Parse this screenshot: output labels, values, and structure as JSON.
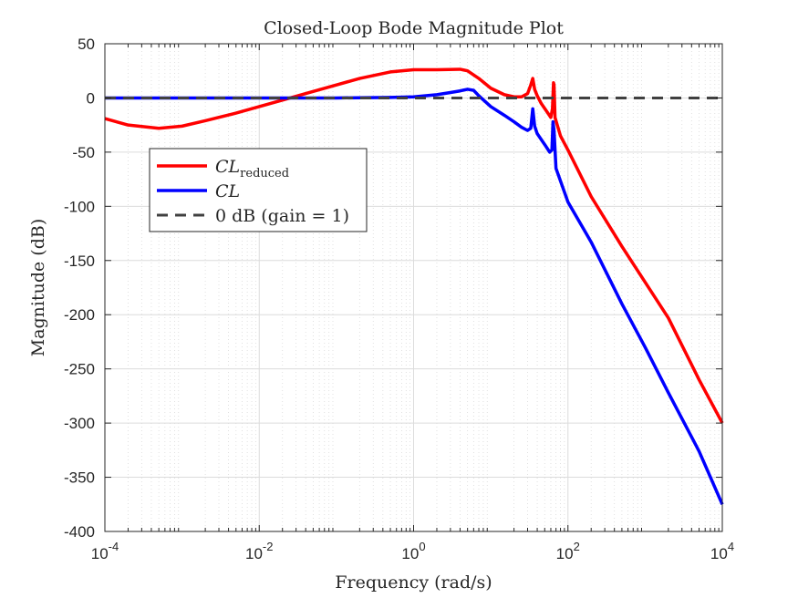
{
  "chart_data": {
    "type": "line",
    "title": "Closed-Loop Bode Magnitude Plot",
    "xlabel": "Frequency (rad/s)",
    "ylabel": "Magnitude (dB)",
    "xscale": "log",
    "xlim": [
      0.0001,
      10000
    ],
    "ylim": [
      -400,
      50
    ],
    "grid": true,
    "minor_grid": true,
    "legend_location": "left-middle",
    "x_ticks": [
      {
        "value": 0.0001,
        "base": "10",
        "exp": "-4"
      },
      {
        "value": 0.01,
        "base": "10",
        "exp": "-2"
      },
      {
        "value": 1,
        "base": "10",
        "exp": "0"
      },
      {
        "value": 100,
        "base": "10",
        "exp": "2"
      },
      {
        "value": 10000,
        "base": "10",
        "exp": "4"
      }
    ],
    "y_ticks": [
      50,
      0,
      -50,
      -100,
      -150,
      -200,
      -250,
      -300,
      -350,
      -400
    ],
    "series": [
      {
        "name": "CL_reduced",
        "legend_main": "CL",
        "legend_sub": "reduced",
        "color": "#ff0000",
        "dash": "solid",
        "points": [
          [
            0.0001,
            -19
          ],
          [
            0.0002,
            -25
          ],
          [
            0.0005,
            -28
          ],
          [
            0.001,
            -26
          ],
          [
            0.002,
            -21
          ],
          [
            0.005,
            -14
          ],
          [
            0.01,
            -8
          ],
          [
            0.02,
            -2
          ],
          [
            0.05,
            6
          ],
          [
            0.1,
            12
          ],
          [
            0.2,
            18
          ],
          [
            0.5,
            24
          ],
          [
            1,
            26
          ],
          [
            2,
            26
          ],
          [
            4,
            26.5
          ],
          [
            5,
            25
          ],
          [
            7,
            18
          ],
          [
            10,
            9
          ],
          [
            15,
            3
          ],
          [
            20,
            1
          ],
          [
            25,
            1
          ],
          [
            30,
            4
          ],
          [
            33,
            12
          ],
          [
            35,
            18
          ],
          [
            37,
            8
          ],
          [
            40,
            2
          ],
          [
            45,
            -5
          ],
          [
            55,
            -14
          ],
          [
            60,
            -18
          ],
          [
            63,
            -10
          ],
          [
            65,
            14
          ],
          [
            66,
            12
          ],
          [
            68,
            -18
          ],
          [
            80,
            -35
          ],
          [
            100,
            -48
          ],
          [
            200,
            -91
          ],
          [
            500,
            -137
          ],
          [
            1000,
            -170
          ],
          [
            2000,
            -203
          ],
          [
            5000,
            -260
          ],
          [
            10000,
            -300
          ]
        ]
      },
      {
        "name": "CL",
        "legend_main": "CL",
        "legend_sub": "",
        "color": "#0000ff",
        "dash": "solid",
        "points": [
          [
            0.0001,
            0
          ],
          [
            0.001,
            0
          ],
          [
            0.01,
            0
          ],
          [
            0.1,
            0
          ],
          [
            0.5,
            0.5
          ],
          [
            1,
            1
          ],
          [
            2,
            3
          ],
          [
            3,
            5
          ],
          [
            4,
            6.5
          ],
          [
            5,
            8
          ],
          [
            6,
            7
          ],
          [
            7,
            2
          ],
          [
            10,
            -8
          ],
          [
            15,
            -16
          ],
          [
            20,
            -22
          ],
          [
            25,
            -27
          ],
          [
            30,
            -30
          ],
          [
            33,
            -28
          ],
          [
            35,
            -10
          ],
          [
            37,
            -26
          ],
          [
            40,
            -33
          ],
          [
            50,
            -43
          ],
          [
            58,
            -50
          ],
          [
            62,
            -48
          ],
          [
            64,
            -22
          ],
          [
            66,
            -30
          ],
          [
            70,
            -65
          ],
          [
            100,
            -96
          ],
          [
            200,
            -133
          ],
          [
            500,
            -190
          ],
          [
            1000,
            -230
          ],
          [
            2000,
            -272
          ],
          [
            5000,
            -326
          ],
          [
            10000,
            -375
          ]
        ]
      },
      {
        "name": "0 dB (gain = 1)",
        "legend_main": "0 dB (gain = 1)",
        "legend_sub": "",
        "color": "#404040",
        "dash": "dashed",
        "points": [
          [
            0.0001,
            0
          ],
          [
            10000,
            0
          ]
        ]
      }
    ]
  }
}
